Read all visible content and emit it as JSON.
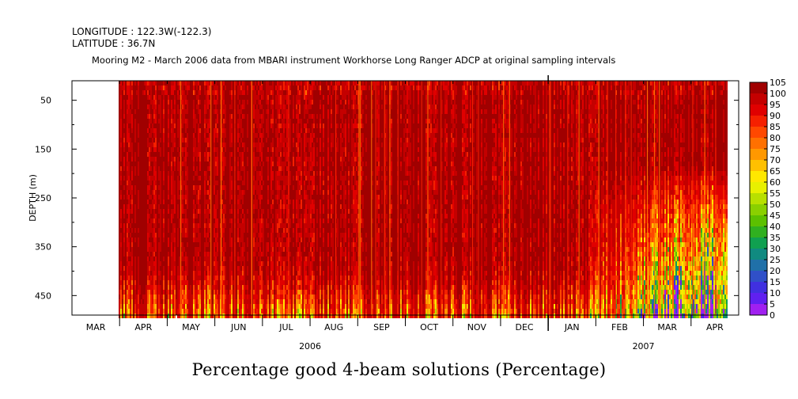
{
  "header": {
    "longitude": "LONGITUDE : 122.3W(-122.3)",
    "latitude": "LATITUDE : 36.7N",
    "subtitle": "Mooring M2 - March 2006 data from MBARI instrument Workhorse Long Ranger ADCP at original sampling intervals"
  },
  "chart_data": {
    "type": "heatmap",
    "title": "Percentage good 4-beam solutions (Percentage)",
    "ylabel": "DEPTH (m)",
    "yticks": [
      "50",
      "150",
      "250",
      "350",
      "450"
    ],
    "ytick_values": [
      50,
      150,
      250,
      350,
      450
    ],
    "ylim": [
      10,
      490
    ],
    "y_inverted": true,
    "xlabel": "",
    "months": [
      "MAR",
      "APR",
      "MAY",
      "JUN",
      "JUL",
      "AUG",
      "SEP",
      "OCT",
      "NOV",
      "DEC",
      "JAN",
      "FEB",
      "MAR",
      "APR"
    ],
    "years": [
      "2006",
      "2007"
    ],
    "x_start": "2006-03",
    "data_start_fraction": 0.98,
    "colorbar": {
      "levels": [
        "105",
        "100",
        "95",
        "90",
        "85",
        "80",
        "75",
        "70",
        "65",
        "60",
        "55",
        "50",
        "45",
        "40",
        "35",
        "30",
        "25",
        "20",
        "15",
        "10",
        "5",
        "0"
      ],
      "colors": [
        "#a00000",
        "#c40000",
        "#e00000",
        "#f52000",
        "#ff4800",
        "#ff7000",
        "#ff9800",
        "#ffc000",
        "#ffe800",
        "#e8f000",
        "#b8e000",
        "#8ad000",
        "#5cc000",
        "#30b020",
        "#10a050",
        "#108a80",
        "#2070a8",
        "#3050c8",
        "#4030e0",
        "#6020f0",
        "#a020f0"
      ]
    },
    "series_summary": "Values mostly 95-105 over all depths; lower values (down to 0-20) near 400-490 m depth, especially Jan-Apr 2007"
  }
}
